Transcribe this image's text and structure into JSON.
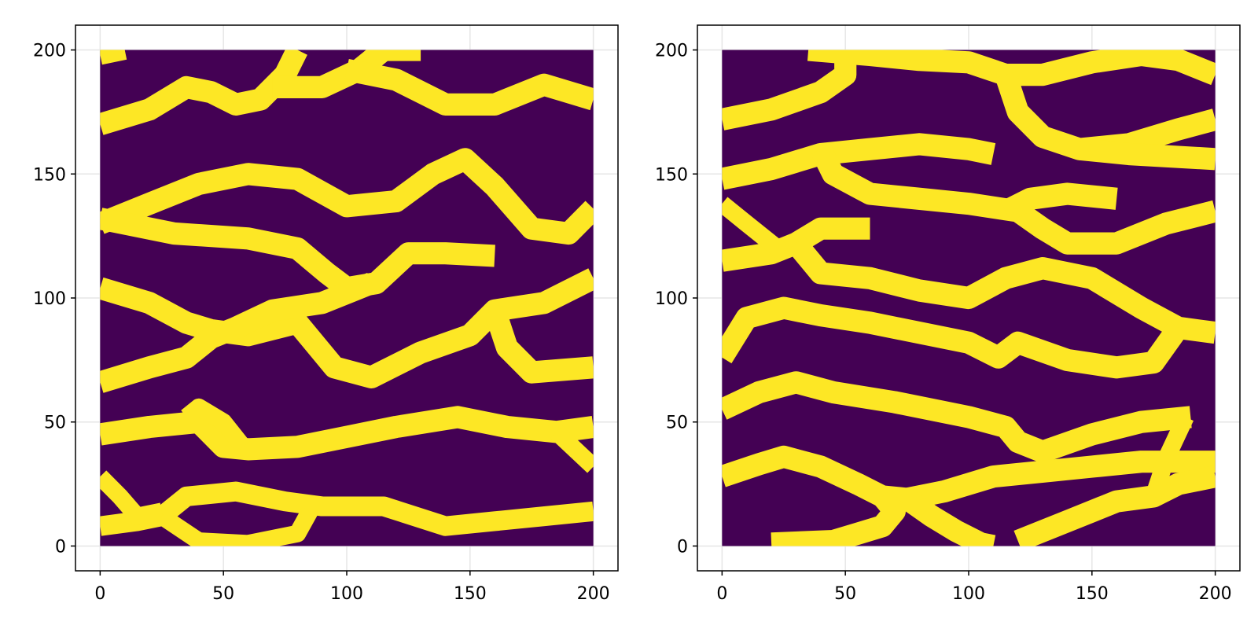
{
  "chart_data": [
    {
      "type": "heatmap",
      "title": "",
      "xlabel": "",
      "ylabel": "",
      "xlim": [
        -10,
        210
      ],
      "ylim": [
        -10,
        210
      ],
      "image_extent": [
        0,
        200,
        0,
        200
      ],
      "xticks": [
        "0",
        "50",
        "100",
        "150",
        "200"
      ],
      "yticks": [
        "0",
        "50",
        "100",
        "150",
        "200"
      ],
      "grid": true,
      "colormap": {
        "low": "#440154",
        "high": "#fde725"
      },
      "values": "binary channel mask (0 = background, 1 = channel)",
      "channels": [
        {
          "width": 8,
          "points": [
            [
              0,
              198
            ],
            [
              10,
              200
            ]
          ]
        },
        {
          "width": 9,
          "points": [
            [
              0,
              170
            ],
            [
              20,
              176
            ],
            [
              35,
              185
            ],
            [
              45,
              183
            ],
            [
              55,
              178
            ],
            [
              65,
              180
            ],
            [
              75,
              190
            ],
            [
              80,
              200
            ]
          ]
        },
        {
          "width": 9,
          "points": [
            [
              70,
              185
            ],
            [
              90,
              185
            ],
            [
              105,
              192
            ],
            [
              115,
              200
            ],
            [
              130,
              200
            ]
          ]
        },
        {
          "width": 9,
          "points": [
            [
              100,
              192
            ],
            [
              120,
              188
            ],
            [
              140,
              178
            ],
            [
              160,
              178
            ],
            [
              180,
              186
            ],
            [
              200,
              180
            ]
          ]
        },
        {
          "width": 9,
          "points": [
            [
              0,
              130
            ],
            [
              20,
              138
            ],
            [
              40,
              146
            ],
            [
              60,
              150
            ],
            [
              80,
              148
            ],
            [
              100,
              137
            ],
            [
              120,
              139
            ],
            [
              135,
              150
            ],
            [
              148,
              156
            ],
            [
              160,
              145
            ],
            [
              175,
              128
            ],
            [
              190,
              126
            ],
            [
              200,
              136
            ]
          ]
        },
        {
          "width": 9,
          "points": [
            [
              0,
              132
            ],
            [
              30,
              126
            ],
            [
              60,
              124
            ],
            [
              80,
              120
            ],
            [
              92,
              110
            ],
            [
              100,
              104
            ],
            [
              112,
              106
            ],
            [
              125,
              118
            ],
            [
              140,
              118
            ],
            [
              160,
              117
            ]
          ]
        },
        {
          "width": 9,
          "points": [
            [
              0,
              104
            ],
            [
              20,
              98
            ],
            [
              35,
              90
            ],
            [
              45,
              87
            ],
            [
              60,
              85
            ],
            [
              80,
              90
            ],
            [
              95,
              72
            ],
            [
              110,
              68
            ],
            [
              130,
              78
            ],
            [
              150,
              85
            ],
            [
              160,
              95
            ],
            [
              180,
              98
            ],
            [
              200,
              108
            ]
          ]
        },
        {
          "width": 9,
          "points": [
            [
              0,
              66
            ],
            [
              20,
              72
            ],
            [
              35,
              76
            ],
            [
              45,
              84
            ],
            [
              55,
              88
            ],
            [
              70,
              95
            ],
            [
              90,
              98
            ],
            [
              110,
              106
            ]
          ]
        },
        {
          "width": 9,
          "points": [
            [
              160,
              95
            ],
            [
              165,
              80
            ],
            [
              175,
              70
            ],
            [
              200,
              72
            ]
          ]
        },
        {
          "width": 9,
          "points": [
            [
              0,
              45
            ],
            [
              20,
              48
            ],
            [
              40,
              50
            ],
            [
              50,
              40
            ],
            [
              60,
              39
            ],
            [
              80,
              40
            ],
            [
              100,
              44
            ],
            [
              120,
              48
            ],
            [
              145,
              52
            ],
            [
              165,
              48
            ],
            [
              185,
              46
            ],
            [
              200,
              48
            ]
          ]
        },
        {
          "width": 7,
          "points": [
            [
              35,
              52
            ],
            [
              40,
              56
            ],
            [
              50,
              50
            ],
            [
              58,
              40
            ]
          ]
        },
        {
          "width": 7,
          "points": [
            [
              185,
              46
            ],
            [
              200,
              32
            ]
          ]
        },
        {
          "width": 8,
          "points": [
            [
              0,
              8
            ],
            [
              15,
              10
            ],
            [
              25,
              12
            ],
            [
              35,
              20
            ],
            [
              55,
              22
            ],
            [
              75,
              18
            ],
            [
              90,
              16
            ],
            [
              115,
              16
            ],
            [
              140,
              8
            ],
            [
              160,
              10
            ],
            [
              180,
              12
            ],
            [
              200,
              14
            ]
          ]
        },
        {
          "width": 7,
          "points": [
            [
              0,
              28
            ],
            [
              8,
              20
            ],
            [
              15,
              12
            ],
            [
              25,
              14
            ]
          ]
        },
        {
          "width": 7,
          "points": [
            [
              25,
              12
            ],
            [
              40,
              2
            ],
            [
              60,
              1
            ],
            [
              80,
              5
            ],
            [
              85,
              14
            ]
          ]
        }
      ]
    },
    {
      "type": "heatmap",
      "title": "",
      "xlabel": "",
      "ylabel": "",
      "xlim": [
        -10,
        210
      ],
      "ylim": [
        -10,
        210
      ],
      "image_extent": [
        0,
        200,
        0,
        200
      ],
      "xticks": [
        "0",
        "50",
        "100",
        "150",
        "200"
      ],
      "yticks": [
        "0",
        "50",
        "100",
        "150",
        "200"
      ],
      "grid": true,
      "colormap": {
        "low": "#440154",
        "high": "#fde725"
      },
      "values": "binary channel mask (0 = background, 1 = channel)",
      "channels": [
        {
          "width": 9,
          "points": [
            [
              0,
              172
            ],
            [
              20,
              176
            ],
            [
              40,
              183
            ],
            [
              50,
              190
            ],
            [
              50,
              200
            ]
          ]
        },
        {
          "width": 9,
          "points": [
            [
              35,
              200
            ],
            [
              60,
              198
            ],
            [
              80,
              196
            ],
            [
              100,
              195
            ],
            [
              115,
              190
            ],
            [
              130,
              190
            ],
            [
              150,
              195
            ],
            [
              170,
              198
            ],
            [
              185,
              196
            ],
            [
              200,
              190
            ]
          ]
        },
        {
          "width": 9,
          "points": [
            [
              115,
              190
            ],
            [
              120,
              175
            ],
            [
              130,
              165
            ],
            [
              145,
              160
            ],
            [
              165,
              162
            ],
            [
              185,
              168
            ],
            [
              200,
              172
            ]
          ]
        },
        {
          "width": 9,
          "points": [
            [
              145,
              160
            ],
            [
              165,
              158
            ],
            [
              200,
              156
            ]
          ]
        },
        {
          "width": 9,
          "points": [
            [
              0,
              148
            ],
            [
              20,
              152
            ],
            [
              40,
              158
            ],
            [
              60,
              160
            ],
            [
              80,
              162
            ],
            [
              100,
              160
            ],
            [
              110,
              158
            ]
          ]
        },
        {
          "width": 9,
          "points": [
            [
              40,
              160
            ],
            [
              45,
              150
            ],
            [
              60,
              142
            ],
            [
              80,
              140
            ],
            [
              100,
              138
            ],
            [
              120,
              135
            ],
            [
              130,
              128
            ],
            [
              140,
              122
            ],
            [
              160,
              122
            ],
            [
              180,
              130
            ],
            [
              200,
              135
            ]
          ]
        },
        {
          "width": 9,
          "points": [
            [
              115,
              135
            ],
            [
              125,
              140
            ],
            [
              140,
              142
            ],
            [
              160,
              140
            ]
          ]
        },
        {
          "width": 9,
          "points": [
            [
              0,
              115
            ],
            [
              20,
              118
            ],
            [
              30,
              122
            ],
            [
              40,
              128
            ],
            [
              60,
              128
            ]
          ]
        },
        {
          "width": 7,
          "points": [
            [
              0,
              138
            ],
            [
              10,
              130
            ],
            [
              20,
              122
            ],
            [
              25,
              118
            ]
          ]
        },
        {
          "width": 9,
          "points": [
            [
              30,
              122
            ],
            [
              40,
              110
            ],
            [
              60,
              108
            ],
            [
              80,
              103
            ],
            [
              100,
              100
            ],
            [
              115,
              108
            ],
            [
              130,
              112
            ],
            [
              150,
              108
            ],
            [
              170,
              96
            ],
            [
              185,
              88
            ],
            [
              200,
              86
            ]
          ]
        },
        {
          "width": 9,
          "points": [
            [
              0,
              76
            ],
            [
              10,
              92
            ],
            [
              25,
              96
            ],
            [
              40,
              93
            ],
            [
              60,
              90
            ],
            [
              80,
              86
            ],
            [
              100,
              82
            ],
            [
              112,
              76
            ],
            [
              120,
              82
            ],
            [
              140,
              75
            ],
            [
              160,
              72
            ],
            [
              175,
              74
            ],
            [
              185,
              88
            ]
          ]
        },
        {
          "width": 9,
          "points": [
            [
              0,
              55
            ],
            [
              15,
              62
            ],
            [
              30,
              66
            ],
            [
              45,
              62
            ],
            [
              70,
              58
            ],
            [
              100,
              52
            ],
            [
              115,
              48
            ],
            [
              120,
              42
            ],
            [
              130,
              38
            ],
            [
              150,
              45
            ],
            [
              170,
              50
            ],
            [
              190,
              52
            ]
          ]
        },
        {
          "width": 9,
          "points": [
            [
              0,
              28
            ],
            [
              15,
              33
            ],
            [
              25,
              36
            ],
            [
              40,
              32
            ],
            [
              55,
              25
            ],
            [
              65,
              20
            ],
            [
              75,
              19
            ],
            [
              90,
              22
            ],
            [
              110,
              28
            ],
            [
              130,
              30
            ],
            [
              150,
              32
            ],
            [
              170,
              34
            ],
            [
              200,
              34
            ]
          ]
        },
        {
          "width": 9,
          "points": [
            [
              65,
              20
            ],
            [
              70,
              14
            ],
            [
              65,
              8
            ],
            [
              55,
              5
            ],
            [
              45,
              2
            ],
            [
              20,
              1
            ]
          ]
        },
        {
          "width": 9,
          "points": [
            [
              75,
              19
            ],
            [
              85,
              12
            ],
            [
              95,
              6
            ],
            [
              105,
              1
            ],
            [
              110,
              0
            ]
          ]
        },
        {
          "width": 9,
          "points": [
            [
              120,
              2
            ],
            [
              140,
              10
            ],
            [
              160,
              18
            ],
            [
              175,
              20
            ],
            [
              185,
              25
            ],
            [
              200,
              28
            ]
          ]
        },
        {
          "width": 7,
          "points": [
            [
              175,
              20
            ],
            [
              180,
              35
            ],
            [
              188,
              52
            ]
          ]
        }
      ]
    }
  ]
}
